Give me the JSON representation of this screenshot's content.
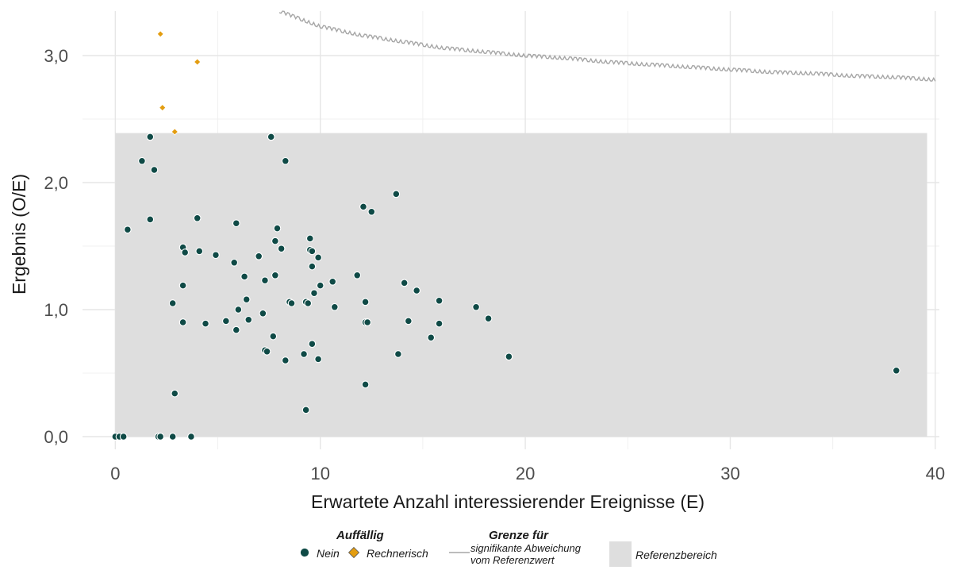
{
  "chart_data": {
    "type": "scatter",
    "xlabel": "Erwartete Anzahl interessierender Ereignisse (E)",
    "ylabel": "Ergebnis (O/E)",
    "xlim": [
      -1.6,
      40.2
    ],
    "ylim": [
      -0.1,
      3.35
    ],
    "x_ticks": [
      0,
      10,
      20,
      30,
      40
    ],
    "x_tick_labels": [
      "0",
      "10",
      "20",
      "30",
      "40"
    ],
    "y_ticks": [
      0.0,
      1.0,
      2.0,
      3.0
    ],
    "y_tick_labels": [
      "0,0",
      "1,0",
      "2,0",
      "3,0"
    ],
    "grid": true,
    "reference_range": {
      "x": [
        0,
        39.6
      ],
      "y": [
        0,
        2.39
      ],
      "label": "Referenzbereich",
      "color": "#dedede"
    },
    "boundary_line": {
      "name": "signifikante Abweichung vom Referenzwert",
      "color": "#a6a6a6",
      "x": [
        8.0,
        9.0,
        10.0,
        12.0,
        14.0,
        16.0,
        18.0,
        20.0,
        22.0,
        24.0,
        26.0,
        28.0,
        30.0,
        32.0,
        34.0,
        36.0,
        38.0,
        40.0
      ],
      "y": [
        3.35,
        3.29,
        3.23,
        3.16,
        3.11,
        3.06,
        3.03,
        3.0,
        2.98,
        2.95,
        2.93,
        2.91,
        2.89,
        2.87,
        2.86,
        2.84,
        2.83,
        2.81
      ]
    },
    "legend": {
      "position": "bottom",
      "group_title": "Auffällig",
      "line_title": "Grenze für",
      "line_label": [
        "signifikante Abweichung",
        "vom Referenzwert"
      ],
      "range_label": "Referenzbereich"
    },
    "series": [
      {
        "name": "Nein",
        "color": "#0f4a46",
        "marker": "circle",
        "x": [
          0.0,
          0.2,
          0.4,
          0.6,
          1.3,
          1.7,
          1.7,
          1.9,
          2.1,
          2.2,
          2.8,
          2.8,
          2.9,
          3.3,
          3.3,
          3.3,
          3.4,
          3.7,
          4.0,
          4.1,
          4.4,
          4.9,
          5.4,
          5.8,
          5.9,
          5.9,
          6.0,
          6.3,
          6.4,
          6.5,
          7.0,
          7.2,
          7.3,
          7.3,
          7.4,
          7.6,
          7.7,
          7.8,
          7.8,
          7.9,
          8.1,
          8.3,
          8.3,
          8.5,
          8.6,
          9.2,
          9.3,
          9.3,
          9.4,
          9.5,
          9.5,
          9.6,
          9.6,
          9.6,
          9.7,
          9.9,
          9.9,
          10.0,
          10.6,
          10.7,
          11.8,
          12.1,
          12.2,
          12.2,
          12.2,
          12.3,
          12.5,
          13.7,
          13.8,
          14.1,
          14.3,
          14.7,
          15.4,
          15.8,
          15.8,
          17.6,
          18.2,
          19.2,
          38.1
        ],
        "y": [
          0.0,
          0.0,
          0.0,
          1.63,
          2.17,
          2.36,
          1.71,
          2.1,
          0.0,
          0.0,
          1.05,
          0.0,
          0.34,
          1.49,
          1.19,
          0.9,
          1.45,
          0.0,
          1.72,
          1.46,
          0.89,
          1.43,
          0.91,
          1.37,
          0.84,
          1.68,
          1.0,
          1.26,
          1.08,
          0.92,
          1.42,
          0.97,
          0.68,
          1.23,
          0.67,
          2.36,
          0.79,
          1.54,
          1.27,
          1.64,
          1.48,
          0.6,
          2.17,
          1.06,
          1.05,
          0.65,
          0.21,
          1.06,
          1.05,
          1.47,
          1.56,
          1.46,
          1.34,
          0.73,
          1.13,
          0.61,
          1.41,
          1.19,
          1.22,
          1.02,
          1.27,
          1.81,
          1.06,
          0.9,
          0.41,
          0.9,
          1.77,
          1.91,
          0.65,
          1.21,
          0.91,
          1.15,
          0.78,
          1.07,
          0.89,
          1.02,
          0.93,
          0.63,
          0.52
        ]
      },
      {
        "name": "Rechnerisch",
        "color": "#e39d10",
        "marker": "diamond",
        "x": [
          2.2,
          2.3,
          2.9,
          4.0
        ],
        "y": [
          3.17,
          2.59,
          2.4,
          2.95
        ]
      }
    ]
  }
}
